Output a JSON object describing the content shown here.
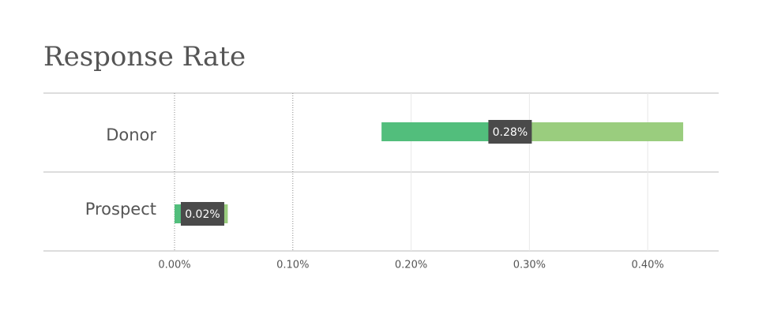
{
  "chart_data": {
    "type": "range",
    "title": "Response Rate",
    "categories": [
      "Donor",
      "Prospect"
    ],
    "low": [
      0.175,
      0
    ],
    "values": [
      0.28,
      0.02
    ],
    "value_labels": [
      "0.28%",
      "0.02%"
    ],
    "high": [
      0.43,
      0.045
    ],
    "colors": {
      "low": "#52be7c",
      "high": "#9acd7e"
    },
    "xlim": [
      0,
      0.46
    ],
    "xticks": [
      {
        "value": 0,
        "label": "0.00%"
      },
      {
        "value": 0.1,
        "label": "0.10%"
      },
      {
        "value": 0.2,
        "label": "0.20%"
      },
      {
        "value": 0.3,
        "label": "0.30%"
      },
      {
        "value": 0.4,
        "label": "0.40%"
      }
    ],
    "grid": true
  }
}
